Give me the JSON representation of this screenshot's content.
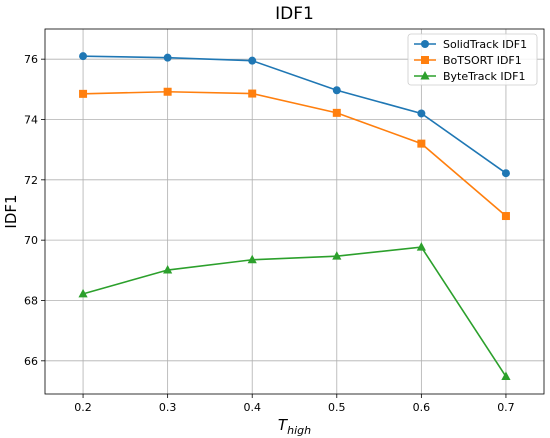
{
  "chart_data": {
    "type": "line",
    "title": "IDF1",
    "xlabel_main": "T",
    "xlabel_sub": "high",
    "ylabel": "IDF1",
    "x": [
      0.2,
      0.3,
      0.4,
      0.5,
      0.6,
      0.7
    ],
    "x_tick_labels": [
      "0.2",
      "0.3",
      "0.4",
      "0.5",
      "0.6",
      "0.7"
    ],
    "xlim": [
      0.155,
      0.745
    ],
    "ylim": [
      64.9,
      77.0
    ],
    "y_ticks": [
      66,
      68,
      70,
      72,
      74,
      76
    ],
    "grid": true,
    "legend_position": "top-right",
    "series": [
      {
        "name": "SolidTrack IDF1",
        "color": "#1f77b4",
        "marker": "circle",
        "values": [
          76.1,
          76.05,
          75.95,
          74.97,
          74.2,
          72.22
        ]
      },
      {
        "name": "BoTSORT IDF1",
        "color": "#ff7f0e",
        "marker": "square",
        "values": [
          74.85,
          74.92,
          74.86,
          74.22,
          73.2,
          70.8
        ]
      },
      {
        "name": "ByteTrack IDF1",
        "color": "#2ca02c",
        "marker": "triangle",
        "values": [
          68.22,
          69.01,
          69.35,
          69.47,
          69.77,
          65.48
        ]
      }
    ]
  }
}
